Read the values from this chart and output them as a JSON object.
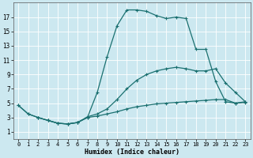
{
  "xlabel": "Humidex (Indice chaleur)",
  "bg_color": "#cce8f0",
  "grid_color": "#b8d8e8",
  "line_color": "#1a7070",
  "markersize": 2.5,
  "linewidth": 0.9,
  "xlim": [
    -0.5,
    23.5
  ],
  "ylim": [
    0,
    19
  ],
  "xticks": [
    0,
    1,
    2,
    3,
    4,
    5,
    6,
    7,
    8,
    9,
    10,
    11,
    12,
    13,
    14,
    15,
    16,
    17,
    18,
    19,
    20,
    21,
    22,
    23
  ],
  "yticks": [
    1,
    3,
    5,
    7,
    9,
    11,
    13,
    15,
    17
  ],
  "curve1_x": [
    0,
    1,
    2,
    3,
    4,
    5,
    6,
    7,
    8,
    9,
    10,
    11,
    12,
    13,
    14,
    15,
    16,
    17,
    18,
    19,
    20,
    21,
    22,
    23
  ],
  "curve1_y": [
    4.7,
    3.5,
    3.0,
    2.6,
    2.2,
    2.1,
    2.3,
    3.0,
    6.5,
    11.5,
    15.8,
    18.0,
    18.0,
    17.8,
    17.2,
    16.8,
    17.0,
    16.8,
    12.5,
    12.5,
    8.0,
    5.2,
    5.0,
    5.2
  ],
  "curve2_x": [
    0,
    1,
    2,
    3,
    4,
    5,
    6,
    7,
    8,
    9,
    10,
    11,
    12,
    13,
    14,
    15,
    16,
    17,
    18,
    19,
    20,
    21,
    22,
    23
  ],
  "curve2_y": [
    4.7,
    3.5,
    3.0,
    2.6,
    2.2,
    2.1,
    2.3,
    3.0,
    3.2,
    3.5,
    3.8,
    4.2,
    4.5,
    4.7,
    4.9,
    5.0,
    5.1,
    5.2,
    5.3,
    5.4,
    5.5,
    5.5,
    5.0,
    5.1
  ],
  "curve3_x": [
    2,
    3,
    4,
    5,
    6,
    7,
    8,
    9,
    10,
    11,
    12,
    13,
    14,
    15,
    16,
    17,
    18,
    19,
    20,
    21,
    22,
    23
  ],
  "curve3_y": [
    3.0,
    2.6,
    2.2,
    2.1,
    2.3,
    3.1,
    3.5,
    4.2,
    5.5,
    7.0,
    8.2,
    9.0,
    9.5,
    9.8,
    10.0,
    9.8,
    9.5,
    9.5,
    9.8,
    7.8,
    6.5,
    5.2
  ]
}
